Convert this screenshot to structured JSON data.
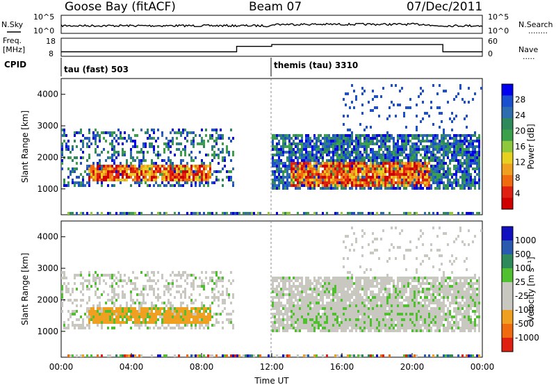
{
  "header": {
    "station": "Goose Bay (fitACF)",
    "beam": "Beam 07",
    "date": "07/Dec/2011"
  },
  "left_labels": {
    "nsky": "N.Sky",
    "freq_line1": "Freq.",
    "freq_line2": "[MHz]",
    "cpid": "CPID"
  },
  "right_labels": {
    "nsearch": "N.Search",
    "nsearch_dots": "........",
    "nave": "Nave",
    "nave_dots": "....."
  },
  "noise_axis": {
    "left_ticks": [
      "10^5",
      "10^0"
    ],
    "right_ticks": [
      "10^5",
      "10^0"
    ]
  },
  "freq_axis": {
    "left_ticks": [
      "18",
      "8"
    ],
    "right_ticks": [
      "60",
      "0"
    ]
  },
  "cpid_labels": [
    "tau (fast) 503",
    "themis (tau) 3310"
  ],
  "x_axis": {
    "label": "Time UT",
    "ticks": [
      "00:00",
      "04:00",
      "08:00",
      "12:00",
      "16:00",
      "20:00",
      "00:00"
    ]
  },
  "power_panel": {
    "ylabel": "Slant Range [km]",
    "yticks": [
      "1000",
      "2000",
      "3000",
      "4000"
    ],
    "colorbar_label": "Power [dB]",
    "colorbar_ticks": [
      "28",
      "24",
      "20",
      "16",
      "12",
      "8",
      "4"
    ],
    "colors": [
      "#0000ee",
      "#1a4fd0",
      "#2e6db0",
      "#2e8a5a",
      "#3aa04a",
      "#8fc83a",
      "#e8d020",
      "#f0a020",
      "#f06a10",
      "#e02010",
      "#d00000"
    ]
  },
  "velocity_panel": {
    "ylabel": "Slant Range [km]",
    "yticks": [
      "1000",
      "2000",
      "3000",
      "4000"
    ],
    "colorbar_label": "Velocity [m s⁻¹]",
    "colorbar_ticks": [
      "1000",
      "500",
      "100",
      "25",
      "-25",
      "-100",
      "-500",
      "-1000"
    ],
    "colors": [
      "#1010c0",
      "#2a5ab0",
      "#2e8a5a",
      "#50c030",
      "#c8c8c0",
      "#c8c8c0",
      "#f0a020",
      "#f06a10",
      "#e02010"
    ]
  },
  "chart_data": [
    {
      "type": "line",
      "title": "Goose Bay (fitACF) Beam 07 07/Dec/2011",
      "series": [
        {
          "name": "N.Sky"
        },
        {
          "name": "N.Search"
        }
      ],
      "ylim": [
        1,
        100000
      ],
      "xlim": [
        "00:00",
        "24:00"
      ]
    },
    {
      "type": "line",
      "series": [
        {
          "name": "Freq.",
          "x": [
            "00:00",
            "10:00",
            "10:00",
            "12:00",
            "12:00",
            "21:45",
            "21:45",
            "24:00"
          ],
          "values": [
            10.5,
            10.5,
            13.5,
            13.5,
            14.5,
            14.5,
            10.5,
            10.5
          ]
        },
        {
          "name": "Nave"
        }
      ],
      "ylim": [
        8,
        18
      ]
    },
    {
      "type": "heatmap",
      "ylabel": "Slant Range [km]",
      "xlabel": "Time UT",
      "quantity": "Power [dB]",
      "colorbar_range": [
        0,
        30
      ],
      "ylim": [
        180,
        4500
      ],
      "xlim": [
        "00:00",
        "24:00"
      ],
      "regions": [
        {
          "t0": 0.0,
          "t1": 9.8,
          "r0": 1100,
          "r1": 3000,
          "level": "low"
        },
        {
          "t0": 1.5,
          "t1": 8.5,
          "r0": 1300,
          "r1": 1800,
          "level": "high"
        },
        {
          "t0": 12.0,
          "t1": 23.8,
          "r0": 1000,
          "r1": 2800,
          "level": "low"
        },
        {
          "t0": 13.0,
          "t1": 21.0,
          "r0": 1100,
          "r1": 1900,
          "level": "high"
        }
      ]
    },
    {
      "type": "heatmap",
      "ylabel": "Slant Range [km]",
      "xlabel": "Time UT",
      "quantity": "Velocity [m s-1]",
      "colorbar_range": [
        -1000,
        1000
      ],
      "ylim": [
        180,
        4500
      ],
      "xlim": [
        "00:00",
        "24:00"
      ]
    }
  ]
}
